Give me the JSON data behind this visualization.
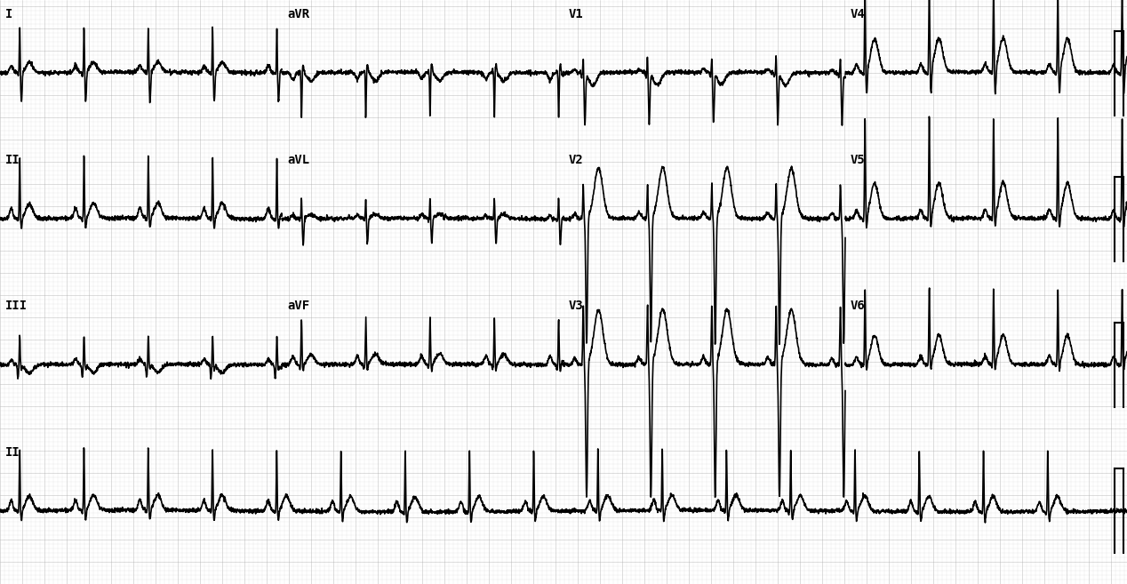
{
  "bg_color": "#ffffff",
  "grid_minor_color": "#cccccc",
  "grid_major_color": "#aaaaaa",
  "line_color": "#000000",
  "fig_width": 12.68,
  "fig_height": 6.57,
  "dpi": 100,
  "row_labels": [
    [
      "I",
      "aVR",
      "V1",
      "V4"
    ],
    [
      "II",
      "aVL",
      "V2",
      "V5"
    ],
    [
      "III",
      "aVF",
      "V3",
      "V6"
    ],
    [
      "II",
      "",
      "",
      ""
    ]
  ],
  "label_font_size": 10,
  "ecg_linewidth": 1.2
}
